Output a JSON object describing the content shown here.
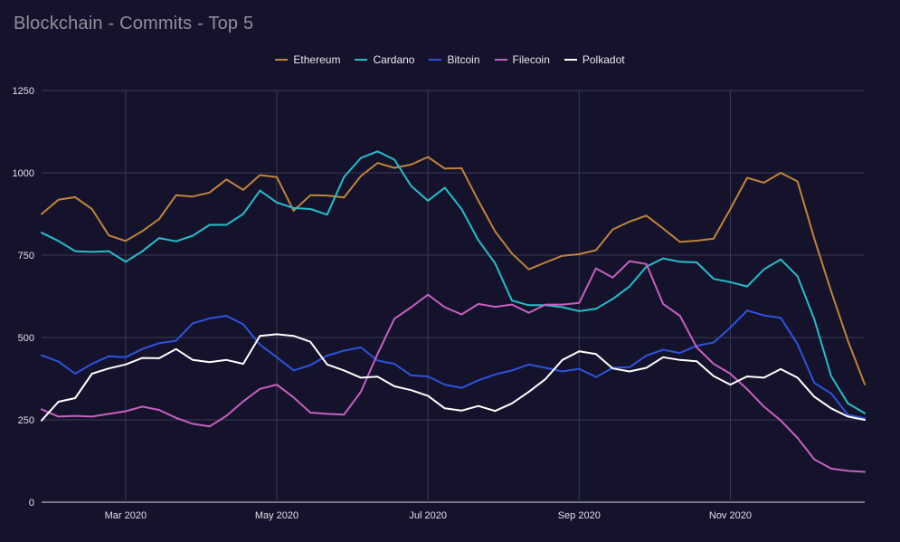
{
  "chart_data": {
    "type": "line",
    "title": "Blockchain - Commits - Top 5",
    "xlabel": "",
    "ylabel": "",
    "ylim": [
      0,
      1250
    ],
    "yticks": [
      0,
      250,
      500,
      750,
      1000,
      1250
    ],
    "ytick_labels": [
      "0",
      "250",
      "500",
      "750",
      "1000",
      "1250"
    ],
    "xticks": [
      {
        "label": "Mar 2020",
        "week": 5
      },
      {
        "label": "May 2020",
        "week": 14
      },
      {
        "label": "Jul 2020",
        "week": 23
      },
      {
        "label": "Sep 2020",
        "week": 32
      },
      {
        "label": "Nov 2020",
        "week": 41
      }
    ],
    "x_range": [
      0,
      50
    ],
    "grid": true,
    "legend_position": "top-center",
    "series": [
      {
        "name": "Ethereum",
        "color": "#c0843a",
        "values": [
          875,
          918,
          926,
          890,
          810,
          793,
          823,
          860,
          932,
          928,
          940,
          980,
          948,
          993,
          987,
          885,
          932,
          931,
          925,
          990,
          1030,
          1015,
          1025,
          1048,
          1013,
          1014,
          915,
          822,
          755,
          707,
          728,
          748,
          753,
          765,
          828,
          852,
          870,
          831,
          790,
          794,
          800,
          890,
          985,
          970,
          1000,
          974,
          800,
          640,
          490,
          358
        ]
      },
      {
        "name": "Cardano",
        "color": "#26bdca",
        "values": [
          818,
          793,
          762,
          760,
          762,
          730,
          762,
          802,
          792,
          809,
          842,
          842,
          875,
          946,
          910,
          893,
          890,
          873,
          987,
          1045,
          1065,
          1040,
          960,
          915,
          955,
          890,
          795,
          725,
          612,
          598,
          598,
          592,
          580,
          587,
          617,
          655,
          715,
          740,
          730,
          728,
          678,
          668,
          655,
          707,
          737,
          686,
          555,
          383,
          300,
          270
        ]
      },
      {
        "name": "Bitcoin",
        "color": "#2c53e0",
        "values": [
          446,
          427,
          390,
          420,
          443,
          440,
          465,
          483,
          490,
          543,
          558,
          566,
          540,
          478,
          440,
          400,
          416,
          445,
          460,
          470,
          430,
          420,
          385,
          382,
          357,
          347,
          370,
          388,
          400,
          418,
          408,
          397,
          405,
          380,
          408,
          410,
          445,
          463,
          453,
          475,
          485,
          530,
          582,
          567,
          560,
          480,
          362,
          330,
          265,
          255
        ]
      },
      {
        "name": "Filecoin",
        "color": "#c85fc0",
        "values": [
          282,
          260,
          262,
          260,
          268,
          276,
          290,
          280,
          256,
          238,
          230,
          262,
          306,
          344,
          357,
          318,
          272,
          268,
          266,
          335,
          450,
          557,
          592,
          630,
          592,
          570,
          602,
          593,
          600,
          575,
          600,
          600,
          605,
          710,
          682,
          732,
          723,
          602,
          566,
          470,
          420,
          390,
          343,
          290,
          248,
          195,
          130,
          102,
          95,
          92
        ]
      },
      {
        "name": "Polkadot",
        "color": "#ffffff",
        "values": [
          248,
          305,
          316,
          390,
          406,
          418,
          438,
          437,
          465,
          432,
          425,
          432,
          420,
          505,
          510,
          505,
          487,
          418,
          400,
          378,
          381,
          352,
          340,
          323,
          285,
          278,
          292,
          277,
          300,
          335,
          374,
          432,
          458,
          450,
          406,
          397,
          408,
          440,
          432,
          428,
          383,
          357,
          382,
          378,
          404,
          378,
          320,
          285,
          260,
          250
        ]
      }
    ]
  }
}
